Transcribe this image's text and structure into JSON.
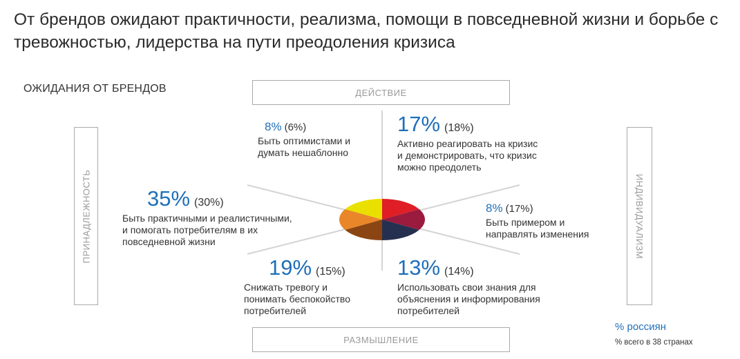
{
  "headline": "От брендов ожидают практичности, реализма, помощи в повседневной жизни и борьбе с тревожностью, лидерства на пути преодоления кризиса",
  "section_label": "ОЖИДАНИЯ ОТ БРЕНДОВ",
  "axes": {
    "top": "ДЕЙСТВИЕ",
    "bottom": "РАЗМЫШЛЕНИЕ",
    "left": "ПРИНАДЛЕЖНОСТЬ",
    "right": "ИНДИВИДУАЛИЗМ"
  },
  "items": {
    "optimists": {
      "pct": "8%",
      "global": "(6%)",
      "desc": "Быть оптимистами и\nдумать нешаблонно",
      "color": "#e9e000"
    },
    "react": {
      "pct": "17%",
      "global": "(18%)",
      "desc": "Активно реагировать на кризис\nи демонстрировать, что кризис\nможно преодолеть",
      "color": "#e01e26"
    },
    "example": {
      "pct": "8%",
      "global": "(17%)",
      "desc": "Быть примером и\nнаправлять изменения",
      "color": "#9a1b3e"
    },
    "knowledge": {
      "pct": "13%",
      "global": "(14%)",
      "desc": "Использовать свои знания для\nобъяснения и информирования\nпотребителей",
      "color": "#253050"
    },
    "anxiety": {
      "pct": "19%",
      "global": "(15%)",
      "desc": "Снижать тревогу и\nпонимать беспокойство\nпотребителей",
      "color": "#8b4513"
    },
    "practical": {
      "pct": "35%",
      "global": "(30%)",
      "desc": "Быть практичными и реалистичными,\nи помогать потребителям в их\nповседневной жизни",
      "color": "#e9862a"
    }
  },
  "legend": {
    "russia": "% россиян",
    "global": "% всего в 38 странах"
  },
  "colors": {
    "accent": "#1f6fb8",
    "axis_text": "#9a9a9a",
    "spokes": "#d4d4d4"
  }
}
